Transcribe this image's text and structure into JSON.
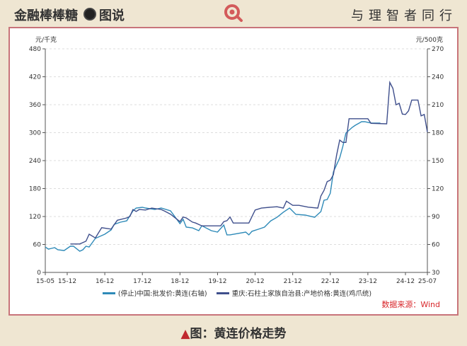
{
  "header": {
    "brand": "金融棒棒糖",
    "section": "图说",
    "slogan": "与理智者同行",
    "logo_icon": "magnifier-icon"
  },
  "caption": {
    "marker": "▲",
    "text": "图：黄连价格走势"
  },
  "source": "数据来源：Wind",
  "colors": {
    "series1": "#2e8ab8",
    "series2": "#3f4f8c",
    "frame": "#c8747a",
    "caption_marker": "#c0282e",
    "source": "#d8262a"
  },
  "chart_data": {
    "type": "line",
    "y_left": {
      "label": "元/千克",
      "range": [
        0,
        480
      ],
      "ticks": [
        0,
        60,
        120,
        180,
        240,
        300,
        360,
        420,
        480
      ]
    },
    "y_right": {
      "label": "元/500克",
      "range": [
        30,
        270
      ],
      "ticks": [
        30,
        60,
        90,
        120,
        150,
        180,
        210,
        240,
        270
      ]
    },
    "x_range": [
      "2015-05",
      "2025-07"
    ],
    "x_ticks": [
      "15-05",
      "15-12",
      "16-12",
      "17-12",
      "18-12",
      "19-12",
      "20-12",
      "21-12",
      "22-12",
      "23-12",
      "24-12",
      "25-07"
    ],
    "x_tick_dates": [
      "2015-05",
      "2015-12",
      "2016-12",
      "2017-12",
      "2018-12",
      "2019-12",
      "2020-12",
      "2021-12",
      "2022-12",
      "2023-12",
      "2024-12",
      "2025-07"
    ],
    "grid": "horizontal dashed",
    "legend_position": "bottom",
    "series": [
      {
        "name": "(停止)中国:批发价:黄连(右轴)",
        "axis": "right",
        "points": [
          [
            "2015-05",
            57.3
          ],
          [
            "2015-06",
            55.0
          ],
          [
            "2015-07",
            55.8
          ],
          [
            "2015-08",
            56.6
          ],
          [
            "2015-09",
            54.3
          ],
          [
            "2015-11",
            53.5
          ],
          [
            "2016-01",
            58.1
          ],
          [
            "2016-02",
            58.1
          ],
          [
            "2016-04",
            52.8
          ],
          [
            "2016-05",
            54.3
          ],
          [
            "2016-06",
            58.1
          ],
          [
            "2016-07",
            57.3
          ],
          [
            "2016-09",
            66.5
          ],
          [
            "2016-12",
            71.0
          ],
          [
            "2017-02",
            75.6
          ],
          [
            "2017-03",
            81.6
          ],
          [
            "2017-05",
            83.9
          ],
          [
            "2017-07",
            85.4
          ],
          [
            "2017-09",
            96.1
          ],
          [
            "2017-10",
            99.1
          ],
          [
            "2017-12",
            99.9
          ],
          [
            "2018-01",
            99.1
          ],
          [
            "2018-04",
            97.6
          ],
          [
            "2018-06",
            99.1
          ],
          [
            "2018-09",
            96.1
          ],
          [
            "2018-11",
            87.0
          ],
          [
            "2018-12",
            82.4
          ],
          [
            "2019-01",
            87.0
          ],
          [
            "2019-02",
            78.6
          ],
          [
            "2019-04",
            77.8
          ],
          [
            "2019-06",
            74.8
          ],
          [
            "2019-07",
            80.1
          ],
          [
            "2019-10",
            74.8
          ],
          [
            "2019-12",
            73.3
          ],
          [
            "2020-02",
            80.9
          ],
          [
            "2020-03",
            70.3
          ],
          [
            "2020-04",
            70.3
          ],
          [
            "2020-09",
            73.3
          ],
          [
            "2020-10",
            70.3
          ],
          [
            "2020-11",
            74.1
          ],
          [
            "2021-01",
            76.3
          ],
          [
            "2021-03",
            78.6
          ],
          [
            "2021-05",
            85.4
          ],
          [
            "2021-07",
            89.2
          ],
          [
            "2021-09",
            94.6
          ],
          [
            "2021-11",
            99.1
          ],
          [
            "2022-01",
            92.3
          ],
          [
            "2022-04",
            91.5
          ],
          [
            "2022-07",
            89.2
          ],
          [
            "2022-08",
            92.3
          ],
          [
            "2022-09",
            95.3
          ],
          [
            "2022-10",
            107.5
          ],
          [
            "2022-11",
            108.2
          ],
          [
            "2022-12",
            115.1
          ],
          [
            "2023-01",
            137.9
          ],
          [
            "2023-03",
            153.0
          ],
          [
            "2023-04",
            165.2
          ],
          [
            "2023-05",
            179.6
          ],
          [
            "2023-07",
            185.7
          ],
          [
            "2023-08",
            188.0
          ],
          [
            "2023-10",
            191.8
          ],
          [
            "2023-11",
            191.8
          ],
          [
            "2024-01",
            190.3
          ],
          [
            "2024-04",
            190.3
          ]
        ]
      },
      {
        "name": "重庆:石柱土家族自治县:产地价格:黄连(鸡爪统)",
        "axis": "left",
        "points": [
          [
            "2016-01",
            61
          ],
          [
            "2016-04",
            61
          ],
          [
            "2016-06",
            67
          ],
          [
            "2016-07",
            82
          ],
          [
            "2016-09",
            74
          ],
          [
            "2016-11",
            96
          ],
          [
            "2017-02",
            93
          ],
          [
            "2017-04",
            112
          ],
          [
            "2017-07",
            117
          ],
          [
            "2017-08",
            120
          ],
          [
            "2017-09",
            135
          ],
          [
            "2017-10",
            131
          ],
          [
            "2017-11",
            135
          ],
          [
            "2018-01",
            134
          ],
          [
            "2018-03",
            138
          ],
          [
            "2018-06",
            135
          ],
          [
            "2018-07",
            132
          ],
          [
            "2018-09",
            125
          ],
          [
            "2018-12",
            109
          ],
          [
            "2019-01",
            119
          ],
          [
            "2019-02",
            117
          ],
          [
            "2019-04",
            108
          ],
          [
            "2019-05",
            106
          ],
          [
            "2019-07",
            100
          ],
          [
            "2020-01",
            100
          ],
          [
            "2020-02",
            109
          ],
          [
            "2020-03",
            111
          ],
          [
            "2020-04",
            119
          ],
          [
            "2020-05",
            106
          ],
          [
            "2020-10",
            106
          ],
          [
            "2020-12",
            134
          ],
          [
            "2021-02",
            138
          ],
          [
            "2021-05",
            140
          ],
          [
            "2021-07",
            141
          ],
          [
            "2021-09",
            138
          ],
          [
            "2021-10",
            153
          ],
          [
            "2021-12",
            144
          ],
          [
            "2022-02",
            144
          ],
          [
            "2022-05",
            140
          ],
          [
            "2022-08",
            138
          ],
          [
            "2022-09",
            164
          ],
          [
            "2022-10",
            176
          ],
          [
            "2022-11",
            195
          ],
          [
            "2022-12",
            198
          ],
          [
            "2023-01",
            210
          ],
          [
            "2023-02",
            251
          ],
          [
            "2023-03",
            284
          ],
          [
            "2023-04",
            279
          ],
          [
            "2023-05",
            279
          ],
          [
            "2023-06",
            330
          ],
          [
            "2023-12",
            330
          ],
          [
            "2024-01",
            320
          ],
          [
            "2024-06",
            319
          ],
          [
            "2024-07",
            408
          ],
          [
            "2024-08",
            395
          ],
          [
            "2024-09",
            360
          ],
          [
            "2024-10",
            363
          ],
          [
            "2024-11",
            340
          ],
          [
            "2024-12",
            339
          ],
          [
            "2025-01",
            347
          ],
          [
            "2025-02",
            370
          ],
          [
            "2025-04",
            370
          ],
          [
            "2025-05",
            336
          ],
          [
            "2025-06",
            339
          ],
          [
            "2025-07",
            301
          ]
        ]
      }
    ]
  }
}
